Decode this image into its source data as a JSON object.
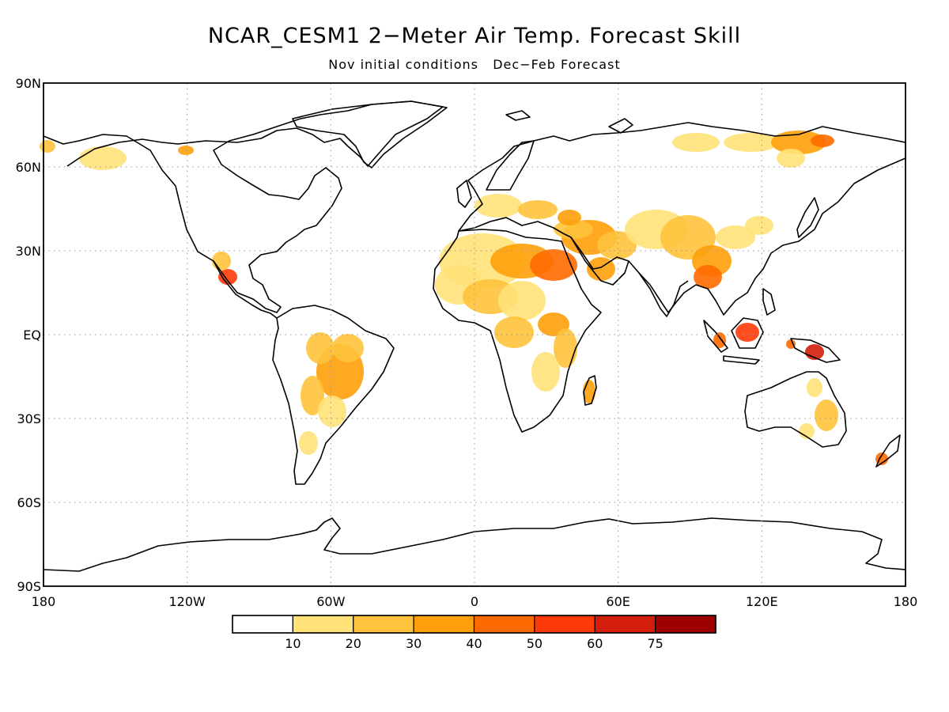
{
  "title": "NCAR_CESM1 2−Meter Air Temp. Forecast Skill",
  "subtitle": "Nov initial conditions   Dec−Feb Forecast",
  "lat_labels": [
    "90N",
    "60N",
    "30N",
    "EQ",
    "30S",
    "60S",
    "90S"
  ],
  "lon_labels": [
    "180",
    "120W",
    "60W",
    "0",
    "60E",
    "120E",
    "180"
  ],
  "colorbar": {
    "labels": [
      "10",
      "20",
      "30",
      "40",
      "50",
      "60",
      "75"
    ],
    "colors": [
      "#ffffff",
      "#ffe278",
      "#ffc23c",
      "#ffa00a",
      "#ff6a00",
      "#ff3a0a",
      "#d21e0a",
      "#9e0000"
    ]
  },
  "colors": {
    "land": "#ffffff",
    "ocean": "#ffffff",
    "coast": "#000000",
    "grid": "#9a9a9a"
  }
}
